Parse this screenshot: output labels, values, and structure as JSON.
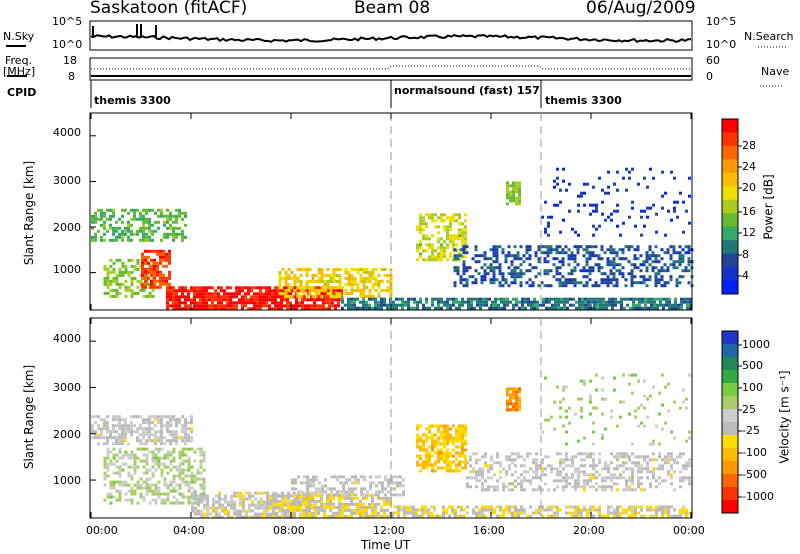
{
  "header": {
    "station": "Saskatoon (fitACF)",
    "beam": "Beam 08",
    "date": "06/Aug/2009"
  },
  "summary": {
    "nsky_label": "N.Sky",
    "nsearch_label": "N.Search",
    "freq_label_line1": "Freq.",
    "freq_label_line2": "[MHz]",
    "nave_label": "Nave",
    "cpid_label": "CPID",
    "noise_ticks_left": [
      "10^5",
      "10^0"
    ],
    "noise_ticks_right": [
      "10^5",
      "10^0"
    ],
    "freq_ticks": [
      "18",
      "8"
    ],
    "nave_ticks": [
      "60",
      "0"
    ],
    "cpid_segments": [
      {
        "start_h": 0,
        "end_h": 12,
        "label": "themis 3300"
      },
      {
        "start_h": 12,
        "end_h": 18,
        "label": "normalsound (fast) 157"
      },
      {
        "start_h": 18,
        "end_h": 24,
        "label": "themis 3300"
      }
    ]
  },
  "colorbars": {
    "power": {
      "label": "Power [dB]",
      "ticks": [
        "28",
        "24",
        "20",
        "16",
        "12",
        "8",
        "4"
      ],
      "colors": [
        "#ff0000",
        "#ff3300",
        "#ff6600",
        "#ff9900",
        "#ffbb00",
        "#eedd00",
        "#aacc22",
        "#66bb33",
        "#33aa66",
        "#227777",
        "#224499",
        "#1133cc",
        "#0022ff"
      ]
    },
    "velocity": {
      "label": "Velocity [m s⁻¹]",
      "ticks": [
        "1000",
        "500",
        "100",
        "25",
        "-25",
        "-100",
        "-500",
        "-1000"
      ],
      "colors": [
        "#2233cc",
        "#2266aa",
        "#228855",
        "#33aa44",
        "#77cc44",
        "#aacc66",
        "#cccccc",
        "#bbbbbb",
        "#ffdd00",
        "#ffbb00",
        "#ff9900",
        "#ff6600",
        "#ff3300",
        "#ff0000"
      ]
    }
  },
  "axes": {
    "x_ticks": [
      "00:00",
      "04:00",
      "08:00",
      "12:00",
      "16:00",
      "20:00",
      "00:00"
    ],
    "x_label": "Time UT",
    "y_label": "Slant Range [km]",
    "y_ticks": [
      "1000",
      "2000",
      "3000",
      "4000"
    ]
  },
  "chart_data": [
    {
      "type": "heatmap",
      "title": "Power [dB]",
      "xlabel": "Time UT",
      "ylabel": "Slant Range [km]",
      "x_range_hours": [
        0,
        24
      ],
      "ylim": [
        180,
        4500
      ],
      "zlim": [
        0,
        30
      ],
      "blobs": [
        {
          "t0": 0.0,
          "t1": 3.8,
          "r0": 1700,
          "r1": 2400,
          "z": 12,
          "density": 0.55
        },
        {
          "t0": 0.5,
          "t1": 2.5,
          "r0": 500,
          "r1": 1300,
          "z": 14,
          "density": 0.5
        },
        {
          "t0": 2.0,
          "t1": 3.2,
          "r0": 700,
          "r1": 1500,
          "z": 26,
          "density": 0.7
        },
        {
          "t0": 3.0,
          "t1": 10.0,
          "r0": 200,
          "r1": 700,
          "z": 28,
          "density": 0.85
        },
        {
          "t0": 7.5,
          "t1": 12.0,
          "r0": 500,
          "r1": 1100,
          "z": 18,
          "density": 0.6
        },
        {
          "t0": 10.0,
          "t1": 24.0,
          "r0": 200,
          "r1": 450,
          "z": 8,
          "density": 0.75
        },
        {
          "t0": 13.0,
          "t1": 15.0,
          "r0": 1300,
          "r1": 2300,
          "z": 16,
          "density": 0.6
        },
        {
          "t0": 14.5,
          "t1": 24.0,
          "r0": 700,
          "r1": 1600,
          "z": 6,
          "density": 0.45
        },
        {
          "t0": 16.6,
          "t1": 17.1,
          "r0": 2500,
          "r1": 3000,
          "z": 14,
          "density": 0.8
        },
        {
          "t0": 18.0,
          "t1": 24.0,
          "r0": 1800,
          "r1": 3300,
          "z": 4,
          "density": 0.1
        }
      ]
    },
    {
      "type": "heatmap",
      "title": "Velocity [m s⁻¹]",
      "xlabel": "Time UT",
      "ylabel": "Slant Range [km]",
      "x_range_hours": [
        0,
        24
      ],
      "ylim": [
        180,
        4500
      ],
      "zlim": [
        -1000,
        1000
      ],
      "blobs": [
        {
          "t0": 0.0,
          "t1": 4.0,
          "r0": 1800,
          "r1": 2400,
          "z": 0,
          "density": 0.6
        },
        {
          "t0": 0.5,
          "t1": 4.5,
          "r0": 500,
          "r1": 1700,
          "z": 150,
          "density": 0.5
        },
        {
          "t0": 4.0,
          "t1": 9.0,
          "r0": 200,
          "r1": 750,
          "z": -60,
          "density": 0.7
        },
        {
          "t0": 7.0,
          "t1": 12.0,
          "r0": 200,
          "r1": 700,
          "z": -150,
          "density": 0.7
        },
        {
          "t0": 8.0,
          "t1": 12.5,
          "r0": 700,
          "r1": 1100,
          "z": 0,
          "density": 0.55
        },
        {
          "t0": 12.0,
          "t1": 24.0,
          "r0": 200,
          "r1": 450,
          "z": -120,
          "density": 0.65
        },
        {
          "t0": 13.0,
          "t1": 15.0,
          "r0": 1200,
          "r1": 2200,
          "z": -300,
          "density": 0.7
        },
        {
          "t0": 15.0,
          "t1": 24.0,
          "r0": 800,
          "r1": 1600,
          "z": 0,
          "density": 0.45
        },
        {
          "t0": 16.6,
          "t1": 17.1,
          "r0": 2500,
          "r1": 3000,
          "z": -500,
          "density": 0.85
        },
        {
          "t0": 18.0,
          "t1": 24.0,
          "r0": 1800,
          "r1": 3300,
          "z": 200,
          "density": 0.1
        }
      ]
    }
  ]
}
